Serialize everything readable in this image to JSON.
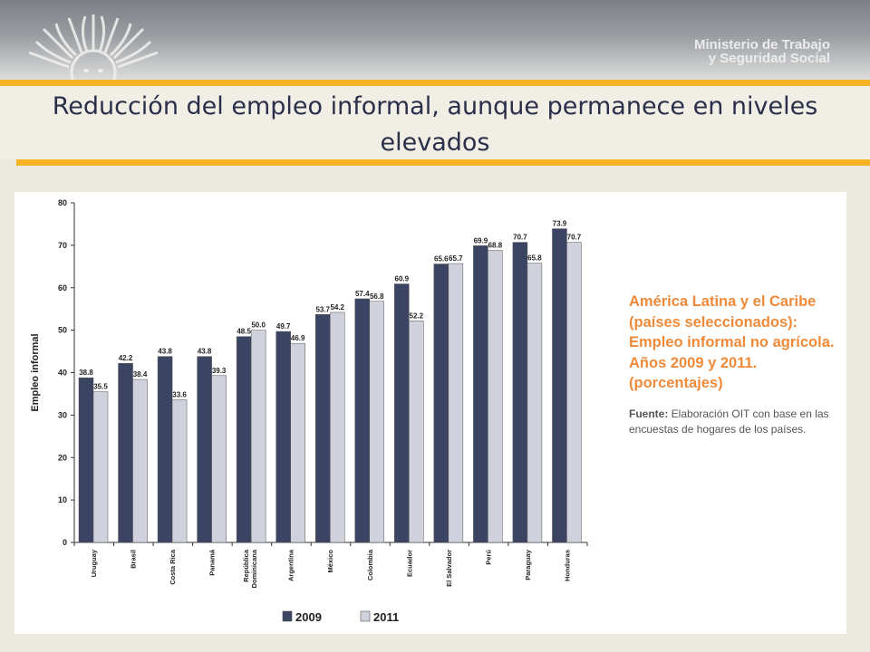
{
  "header": {
    "ministry_line1": "Ministerio de Trabajo",
    "ministry_line2": "y Seguridad Social",
    "logo": "sun-logo"
  },
  "slide": {
    "title": "Reducción del empleo informal, aunque permanece en niveles elevados"
  },
  "sidebar": {
    "chart_title": "América Latina y el Caribe (países seleccionados): Empleo informal no agrícola. Años 2009 y 2011. (porcentajes)",
    "source_label": "Fuente:",
    "source_text": " Elaboración OIT con base en las encuestas de hogares de los países."
  },
  "colors": {
    "series_2009": "#3b4463",
    "series_2011": "#cfd1dc",
    "accent": "#f5b323",
    "sidebar_title": "#ef8a3a"
  },
  "chart_data": {
    "type": "bar",
    "ylabel": "Empleo informal",
    "ylim": [
      0,
      80
    ],
    "yticks": [
      0,
      10,
      20,
      30,
      40,
      50,
      60,
      70,
      80
    ],
    "grid": false,
    "legend_position": "bottom",
    "categories": [
      "Uruguay",
      "Brasil",
      "Costa Rica",
      "Panamá",
      "República Dominicana",
      "Argentina",
      "México",
      "Colombia",
      "Ecuador",
      "El Salvador",
      "Perú",
      "Paraguay",
      "Honduras"
    ],
    "category_lines": [
      [
        "Uruguay"
      ],
      [
        "Brasil"
      ],
      [
        "Costa Rica"
      ],
      [
        "Panamá"
      ],
      [
        "República",
        "Dominicana"
      ],
      [
        "Argentina"
      ],
      [
        "México"
      ],
      [
        "Colombia"
      ],
      [
        "Ecuador"
      ],
      [
        "El Salvador"
      ],
      [
        "Perú"
      ],
      [
        "Paraguay"
      ],
      [
        "Honduras"
      ]
    ],
    "series": [
      {
        "name": "2009",
        "color": "#3b4463",
        "values": [
          38.8,
          42.2,
          43.8,
          43.8,
          48.5,
          49.7,
          53.7,
          57.4,
          60.9,
          65.6,
          69.9,
          70.7,
          73.9
        ]
      },
      {
        "name": "2011",
        "color": "#cfd1dc",
        "values": [
          35.5,
          38.4,
          33.6,
          39.3,
          50.0,
          46.9,
          54.2,
          56.8,
          52.2,
          65.7,
          68.8,
          65.8,
          70.7
        ]
      }
    ]
  }
}
